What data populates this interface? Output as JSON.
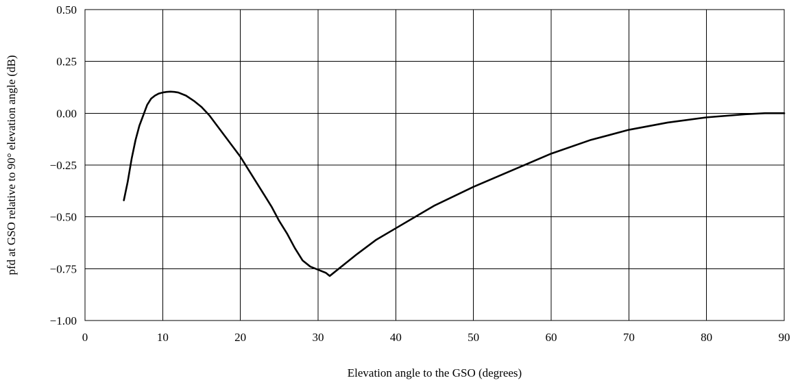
{
  "chart_data": {
    "type": "line",
    "title": "",
    "xlabel": "Elevation angle to the GSO (degrees)",
    "ylabel": "pfd at GSO relative to 90° elevation angle (dB)",
    "xlim": [
      0,
      90
    ],
    "ylim": [
      -1.0,
      0.5
    ],
    "grid": true,
    "legend": "none",
    "x_ticks": [
      0,
      10,
      20,
      30,
      40,
      50,
      60,
      70,
      80,
      90
    ],
    "x_tick_labels": [
      "0",
      "10",
      "20",
      "30",
      "40",
      "50",
      "60",
      "70",
      "80",
      "90"
    ],
    "y_ticks": [
      0.5,
      0.25,
      0.0,
      -0.25,
      -0.5,
      -0.75,
      -1.0
    ],
    "y_tick_labels": [
      "0.50",
      "0.25",
      "0.00",
      "−0.25",
      "−0.50",
      "−0.75",
      "−1.00"
    ],
    "series": [
      {
        "color": "#000000",
        "x": [
          5.0,
          5.5,
          6.0,
          6.5,
          7.0,
          7.5,
          8.0,
          8.5,
          9.0,
          9.5,
          10.0,
          10.5,
          11.0,
          11.5,
          12.0,
          13.0,
          14.0,
          15.0,
          16.0,
          17.0,
          18.0,
          19.0,
          20.0,
          21.0,
          22.0,
          23.0,
          24.0,
          25.0,
          26.0,
          27.0,
          28.0,
          29.0,
          30.0,
          31.0,
          31.5,
          33.0,
          35.0,
          37.5,
          40.0,
          42.5,
          45.0,
          47.5,
          50.0,
          55.0,
          60.0,
          65.0,
          70.0,
          75.0,
          80.0,
          85.0,
          87.5,
          90.0
        ],
        "y": [
          -0.42,
          -0.33,
          -0.22,
          -0.13,
          -0.06,
          -0.01,
          0.04,
          0.07,
          0.085,
          0.095,
          0.1,
          0.103,
          0.104,
          0.103,
          0.1,
          0.085,
          0.06,
          0.03,
          -0.01,
          -0.06,
          -0.11,
          -0.16,
          -0.21,
          -0.27,
          -0.33,
          -0.39,
          -0.45,
          -0.52,
          -0.58,
          -0.65,
          -0.71,
          -0.74,
          -0.755,
          -0.77,
          -0.785,
          -0.74,
          -0.68,
          -0.61,
          -0.555,
          -0.5,
          -0.445,
          -0.4,
          -0.355,
          -0.275,
          -0.195,
          -0.13,
          -0.08,
          -0.045,
          -0.02,
          -0.005,
          0.0,
          0.0
        ]
      }
    ]
  }
}
